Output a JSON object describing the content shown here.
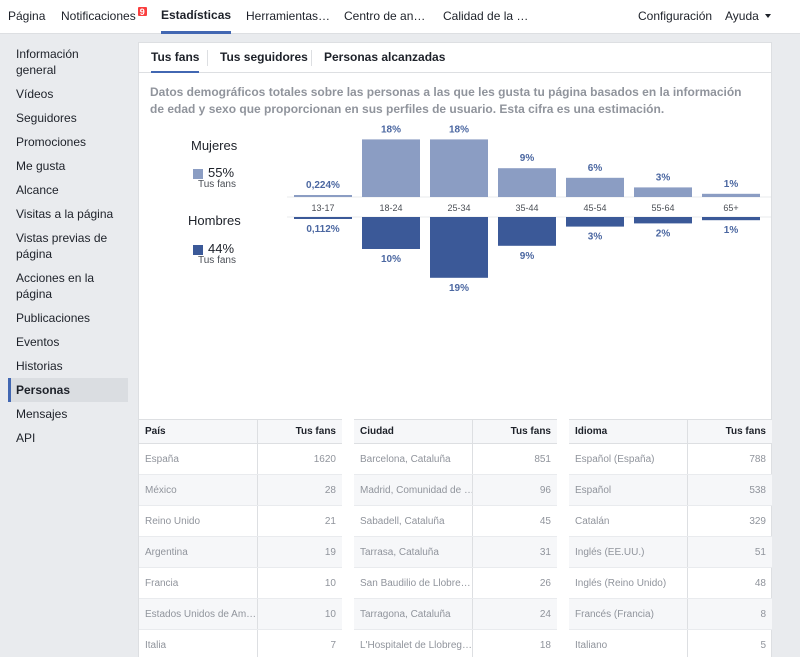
{
  "topnav": {
    "items": [
      {
        "label": "Página"
      },
      {
        "label": "Notificaciones",
        "badge": "9"
      },
      {
        "label": "Estadísticas"
      },
      {
        "label": "Herramientas…"
      },
      {
        "label": "Centro de an…"
      },
      {
        "label": "Calidad de la …"
      }
    ],
    "settings": "Configuración",
    "help": "Ayuda"
  },
  "sidebar": {
    "items": [
      {
        "label": "Información general"
      },
      {
        "label": "Vídeos"
      },
      {
        "label": "Seguidores"
      },
      {
        "label": "Promociones"
      },
      {
        "label": "Me gusta"
      },
      {
        "label": "Alcance"
      },
      {
        "label": "Visitas a la página"
      },
      {
        "label": "Vistas previas de página"
      },
      {
        "label": "Acciones en la página"
      },
      {
        "label": "Publicaciones"
      },
      {
        "label": "Eventos"
      },
      {
        "label": "Historias"
      },
      {
        "label": "Personas"
      },
      {
        "label": "Mensajes"
      },
      {
        "label": "API"
      }
    ]
  },
  "tabs": [
    {
      "label": "Tus fans"
    },
    {
      "label": "Tus seguidores"
    },
    {
      "label": "Personas alcanzadas"
    }
  ],
  "description": "Datos demográficos totales sobre las personas a las que les gusta tu página basados en la información de edad y sexo que proporcionan en sus perfiles de usuario. Esta cifra es una estimación.",
  "gender": {
    "women": {
      "title": "Mujeres",
      "pct": "55%",
      "sub": "Tus fans",
      "color": "#8b9dc3"
    },
    "men": {
      "title": "Hombres",
      "pct": "44%",
      "sub": "Tus fans",
      "color": "#3b5998"
    }
  },
  "chart_data": {
    "type": "bar",
    "categories": [
      "13-17",
      "18-24",
      "25-34",
      "35-44",
      "45-54",
      "55-64",
      "65+"
    ],
    "series": [
      {
        "name": "Mujeres",
        "values": [
          0.224,
          18,
          18,
          9,
          6,
          3,
          1
        ],
        "labels": [
          "0,224%",
          "18%",
          "18%",
          "9%",
          "6%",
          "3%",
          "1%"
        ],
        "color": "#8b9dc3"
      },
      {
        "name": "Hombres",
        "values": [
          0.112,
          10,
          19,
          9,
          3,
          2,
          1
        ],
        "labels": [
          "0,112%",
          "10%",
          "19%",
          "9%",
          "3%",
          "2%",
          "1%"
        ],
        "color": "#3b5998"
      }
    ]
  },
  "tables": [
    {
      "col1": "País",
      "col2": "Tus fans",
      "rows": [
        {
          "name": "España",
          "value": "1620"
        },
        {
          "name": "México",
          "value": "28"
        },
        {
          "name": "Reino Unido",
          "value": "21"
        },
        {
          "name": "Argentina",
          "value": "19"
        },
        {
          "name": "Francia",
          "value": "10"
        },
        {
          "name": "Estados Unidos de Am…",
          "value": "10"
        },
        {
          "name": "Italia",
          "value": "7"
        }
      ]
    },
    {
      "col1": "Ciudad",
      "col2": "Tus fans",
      "rows": [
        {
          "name": "Barcelona, Cataluña",
          "value": "851"
        },
        {
          "name": "Madrid, Comunidad de …",
          "value": "96"
        },
        {
          "name": "Sabadell, Cataluña",
          "value": "45"
        },
        {
          "name": "Tarrasa, Cataluña",
          "value": "31"
        },
        {
          "name": "San Baudilio de Llobre…",
          "value": "26"
        },
        {
          "name": "Tarragona, Cataluña",
          "value": "24"
        },
        {
          "name": "L'Hospitalet de Llobreg…",
          "value": "18"
        }
      ]
    },
    {
      "col1": "Idioma",
      "col2": "Tus fans",
      "rows": [
        {
          "name": "Español (España)",
          "value": "788"
        },
        {
          "name": "Español",
          "value": "538"
        },
        {
          "name": "Catalán",
          "value": "329"
        },
        {
          "name": "Inglés (EE.UU.)",
          "value": "51"
        },
        {
          "name": "Inglés (Reino Unido)",
          "value": "48"
        },
        {
          "name": "Francés (Francia)",
          "value": "8"
        },
        {
          "name": "Italiano",
          "value": "5"
        }
      ]
    }
  ]
}
